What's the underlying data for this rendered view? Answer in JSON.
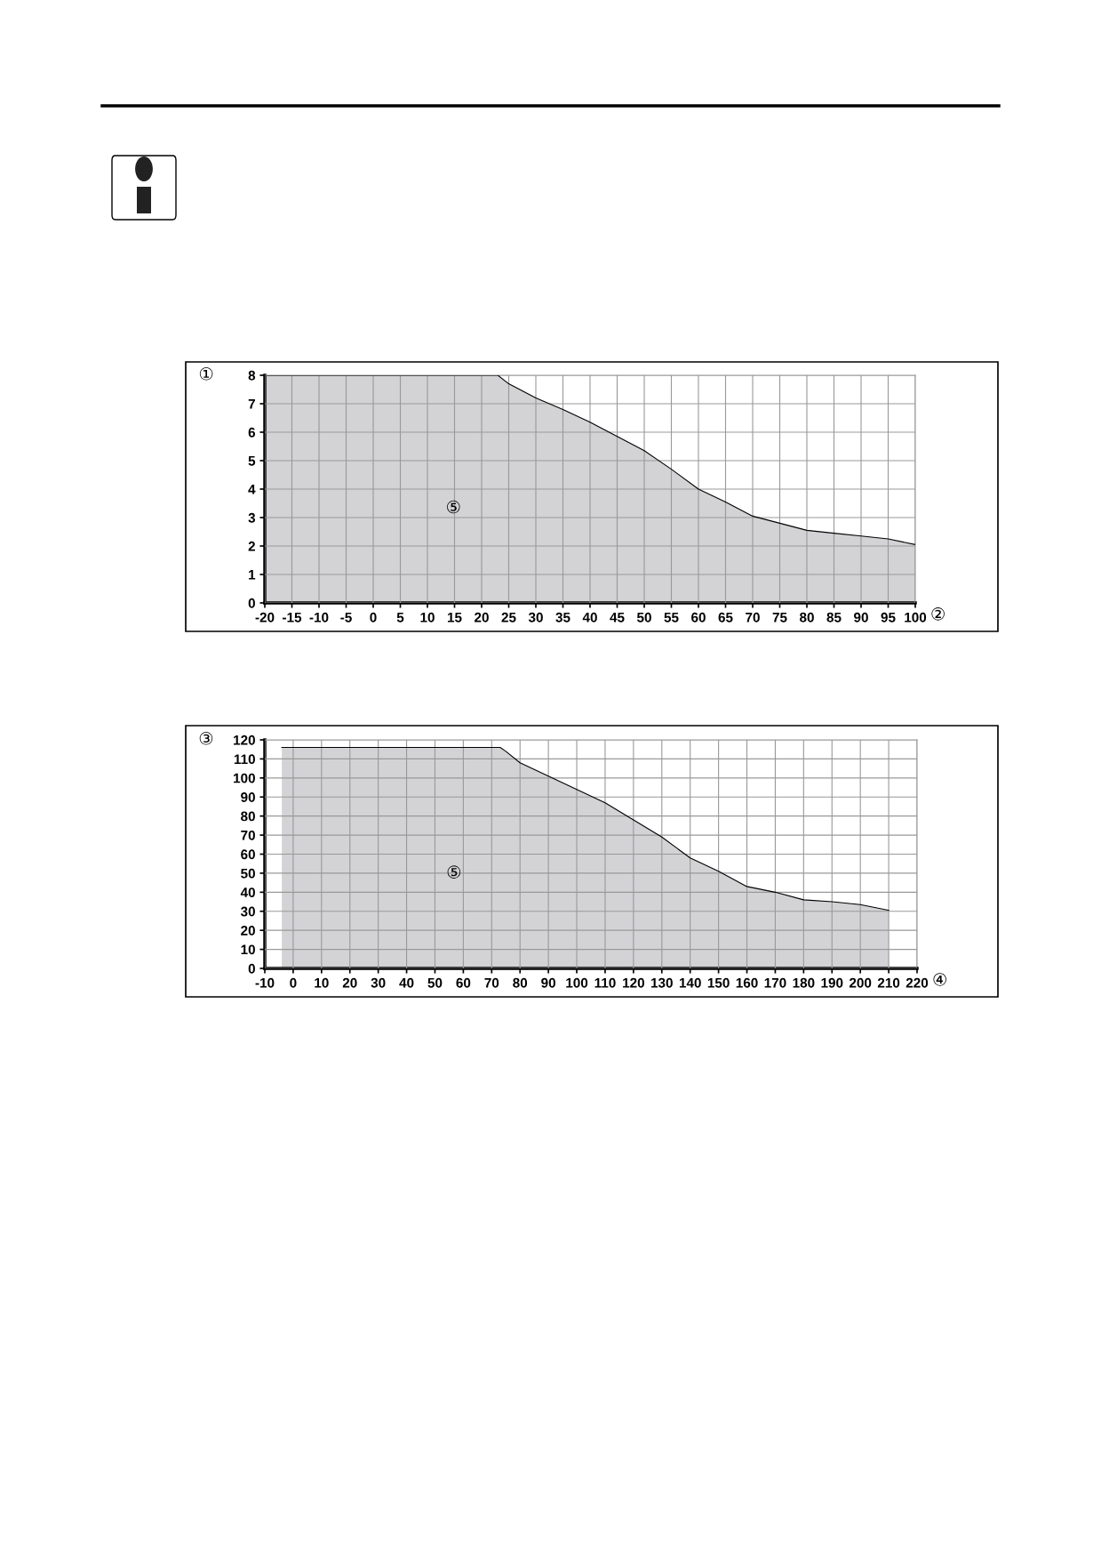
{
  "chart_data": [
    {
      "type": "area",
      "ylabel": "①",
      "xlabel": "②",
      "annotations": [
        "⑤"
      ],
      "x": [
        -20,
        23,
        25,
        30,
        35,
        40,
        45,
        50,
        55,
        60,
        65,
        70,
        75,
        80,
        85,
        90,
        95,
        100
      ],
      "series": [
        {
          "color": "#d3d3d6",
          "values": [
            8,
            8,
            7.7,
            7.2,
            6.8,
            6.35,
            5.85,
            5.35,
            4.7,
            4.0,
            3.55,
            3.05,
            2.8,
            2.55,
            2.45,
            2.35,
            2.25,
            2.05
          ]
        }
      ],
      "xlim": [
        -20,
        100
      ],
      "xticks": [
        -20,
        -15,
        -10,
        -5,
        0,
        5,
        10,
        15,
        20,
        25,
        30,
        35,
        40,
        45,
        50,
        55,
        60,
        65,
        70,
        75,
        80,
        85,
        90,
        95,
        100
      ],
      "ylim": [
        0,
        8
      ],
      "yticks": [
        0,
        1,
        2,
        3,
        4,
        5,
        6,
        7,
        8
      ],
      "grid": true
    },
    {
      "type": "area",
      "ylabel": "③",
      "xlabel": "④",
      "annotations": [
        "⑤"
      ],
      "x": [
        -4,
        73,
        75,
        80,
        90,
        100,
        110,
        120,
        130,
        140,
        150,
        160,
        170,
        180,
        190,
        200,
        210
      ],
      "series": [
        {
          "color": "#d3d3d6",
          "values": [
            116,
            116,
            114,
            108,
            101,
            94,
            87,
            78,
            69,
            58,
            51,
            43,
            40,
            36,
            35,
            33.5,
            30.5
          ]
        }
      ],
      "xlim": [
        -10,
        220
      ],
      "xticks": [
        -10,
        0,
        10,
        20,
        30,
        40,
        50,
        60,
        70,
        80,
        90,
        100,
        110,
        120,
        130,
        140,
        150,
        160,
        170,
        180,
        190,
        200,
        210,
        220
      ],
      "ylim": [
        0,
        120
      ],
      "yticks": [
        0,
        10,
        20,
        30,
        40,
        50,
        60,
        70,
        80,
        90,
        100,
        110,
        120
      ],
      "grid": true
    }
  ]
}
